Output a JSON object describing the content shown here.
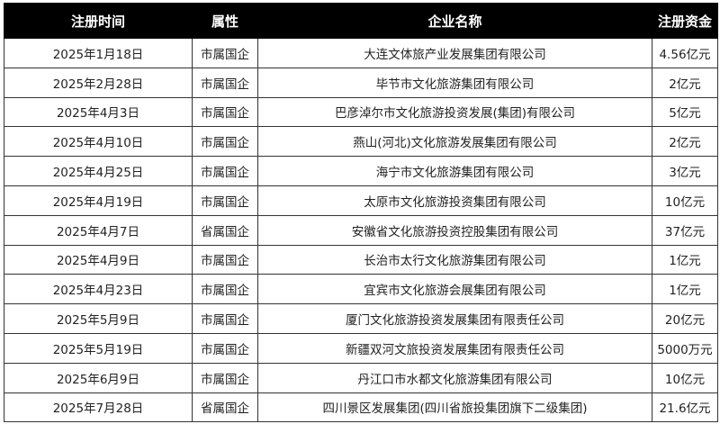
{
  "headers": [
    "注册时间",
    "属性",
    "企业名称",
    "注册资金"
  ],
  "rows": [
    [
      "2025年1月18日",
      "市属国企",
      "大连文体旅产业发展集团有限公司",
      "4.56亿元"
    ],
    [
      "2025年2月28日",
      "市属国企",
      "毕节市文化旅游集团有限公司",
      "2亿元"
    ],
    [
      "2025年4月3日",
      "市属国企",
      "巴彦淖尔市文化旅游投资发展(集团)有限公司",
      "5亿元"
    ],
    [
      "2025年4月10日",
      "市属国企",
      "燕山(河北)文化旅游发展集团有限公司",
      "2亿元"
    ],
    [
      "2025年4月25日",
      "市属国企",
      "海宁市文化旅游集团有限公司",
      "3亿元"
    ],
    [
      "2025年4月19日",
      "市属国企",
      "太原市文化旅游投资集团有限公司",
      "10亿元"
    ],
    [
      "2025年4月7日",
      "省属国企",
      "安徽省文化旅游投资控股集团有限公司",
      "37亿元"
    ],
    [
      "2025年4月9日",
      "市属国企",
      "长治市太行文化旅游集团有限公司",
      "1亿元"
    ],
    [
      "2025年4月23日",
      "市属国企",
      "宜宾市文化旅游会展集团有限公司",
      "1亿元"
    ],
    [
      "2025年5月9日",
      "市属国企",
      "厦门文化旅游投资发展集团有限责任公司",
      "20亿元"
    ],
    [
      "2025年5月19日",
      "市属国企",
      "新疆双河文旅投资发展集团有限责任公司",
      "5000万元"
    ],
    [
      "2025年6月9日",
      "市属国企",
      "丹江口市水都文化旅游集团有限公司",
      "10亿元"
    ],
    [
      "2025年7月28日",
      "省属国企",
      "四川景区发展集团(四川省旅投集团旗下二级集团)",
      "21.6亿元"
    ]
  ]
}
